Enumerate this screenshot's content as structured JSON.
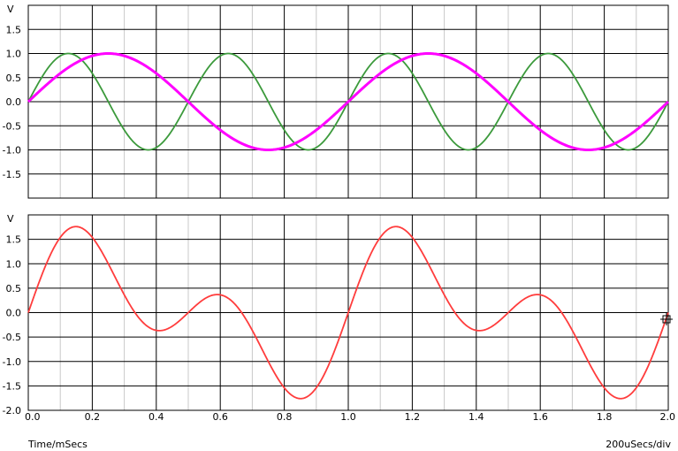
{
  "footer": {
    "left_label": "Time/mSecs",
    "right_label": "200uSecs/div"
  },
  "colors": {
    "green": "#3c9a3c",
    "magenta": "#ff00ff",
    "red": "#ff3c3c",
    "grid_major": "#000000",
    "grid_minor": "#c8c8c8"
  },
  "chart_data": [
    {
      "type": "line",
      "unit_label": "V",
      "xlim": [
        0,
        2.0
      ],
      "ylim": [
        -2.0,
        2.0
      ],
      "yticks": [
        "1.5",
        "1.0",
        "0.5",
        "0.0",
        "-0.5",
        "-1.0",
        "-1.5"
      ],
      "grid": true,
      "series": [
        {
          "color": "#3c9a3c",
          "amplitude": 1.0,
          "freq_khz": 2,
          "x": [
            0,
            0.125,
            0.25,
            0.375,
            0.5,
            0.625,
            0.75,
            0.875,
            1.0,
            1.125,
            1.25,
            1.375,
            1.5,
            1.625,
            1.75,
            1.875,
            2.0
          ],
          "y": [
            0,
            1.0,
            0,
            -1.0,
            0,
            1.0,
            0,
            -1.0,
            0,
            1.0,
            0,
            -1.0,
            0,
            1.0,
            0,
            -1.0,
            0
          ]
        },
        {
          "color": "#ff00ff",
          "amplitude": 1.0,
          "freq_khz": 1,
          "x": [
            0,
            0.25,
            0.5,
            0.75,
            1.0,
            1.25,
            1.5,
            1.75,
            2.0
          ],
          "y": [
            0,
            1.0,
            0,
            -1.0,
            0,
            1.0,
            0,
            -1.0,
            0
          ]
        }
      ]
    },
    {
      "type": "line",
      "unit_label": "V",
      "xlim": [
        0,
        2.0
      ],
      "ylim": [
        -2.0,
        2.0
      ],
      "yticks": [
        "1.5",
        "1.0",
        "0.5",
        "0.0",
        "-0.5",
        "-1.0",
        "-1.5",
        "-2.0"
      ],
      "xticks": [
        "0.0",
        "0.2",
        "0.4",
        "0.6",
        "0.8",
        "1.0",
        "1.2",
        "1.4",
        "1.6",
        "1.8",
        "2.0"
      ],
      "grid": true,
      "series": [
        {
          "color": "#ff3c3c",
          "components": [
            {
              "amplitude": 1.0,
              "freq_khz": 2
            },
            {
              "amplitude": 1.0,
              "freq_khz": 1
            }
          ],
          "x": [
            0,
            0.15,
            0.4,
            0.59,
            0.86,
            1.0,
            1.15,
            1.4,
            1.59,
            1.86,
            2.0
          ],
          "y": [
            0,
            1.76,
            -0.38,
            0.38,
            -1.76,
            0,
            1.76,
            -0.38,
            0.38,
            -1.76,
            0
          ]
        }
      ]
    }
  ]
}
